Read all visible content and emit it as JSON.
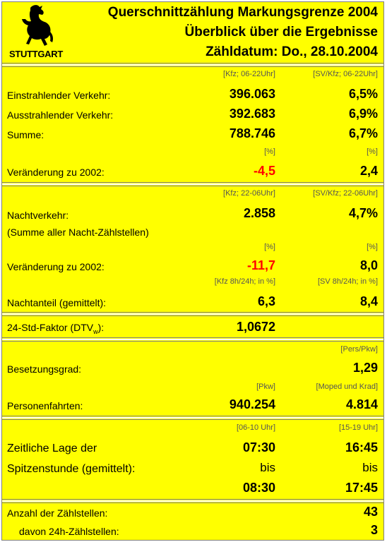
{
  "header": {
    "logo_text": "STUTTGART",
    "title1": "Querschnittzählung Markungsgrenze 2004",
    "title2": "Überblick über die Ergebnisse",
    "title3": "Zähldatum: Do., 28.10.2004"
  },
  "day": {
    "unit1": "[Kfz; 06-22Uhr]",
    "unit2": "[SV/Kfz; 06-22Uhr]",
    "rows": [
      {
        "label": "Einstrahlender Verkehr:",
        "v1": "396.063",
        "v2": "6,5%"
      },
      {
        "label": "Ausstrahlender Verkehr:",
        "v1": "392.683",
        "v2": "6,9%"
      },
      {
        "label": "Summe:",
        "v1": "788.746",
        "v2": "6,7%"
      }
    ],
    "pct1": "[%]",
    "pct2": "[%]",
    "change_label": "Veränderung zu 2002:",
    "change_v1": "-4,5",
    "change_v2": "2,4"
  },
  "night": {
    "unit1": "[Kfz; 22-06Uhr]",
    "unit2": "[SV/Kfz; 22-06Uhr]",
    "label": "Nachtverkehr:",
    "sublabel": "(Summe aller Nacht-Zählstellen)",
    "v1": "2.858",
    "v2": "4,7%",
    "pct1": "[%]",
    "pct2": "[%]",
    "change_label": "Veränderung zu 2002:",
    "change_v1": "-11,7",
    "change_v2": "8,0",
    "share_unit1": "[Kfz 8h/24h; in %]",
    "share_unit2": "[SV 8h/24h; in %]",
    "share_label": "Nachtanteil (gemittelt):",
    "share_v1": "6,3",
    "share_v2": "8,4"
  },
  "factor": {
    "label": "24-Std-Faktor (DTV",
    "label_sub": "w",
    "label_end": "):",
    "value": "1,0672"
  },
  "occupancy": {
    "unit2": "[Pers/Pkw]",
    "label": "Besetzungsgrad:",
    "v2": "1,29",
    "unit_pkw": "[Pkw]",
    "unit_moped": "[Moped und Krad]",
    "trips_label": "Personenfahrten:",
    "trips_v1": "940.254",
    "trips_v2": "4.814"
  },
  "peak": {
    "unit1": "[06-10 Uhr]",
    "unit2": "[15-19 Uhr]",
    "label1": "Zeitliche Lage der",
    "label2": "Spitzenstunde (gemittelt):",
    "am_from": "07:30",
    "pm_from": "16:45",
    "am_bis": "bis",
    "pm_bis": "bis",
    "am_to": "08:30",
    "pm_to": "17:45"
  },
  "stations": {
    "label": "Anzahl der Zählstellen:",
    "value": "43",
    "sub_label": "davon 24h-Zählstellen:",
    "sub_value": "3"
  }
}
